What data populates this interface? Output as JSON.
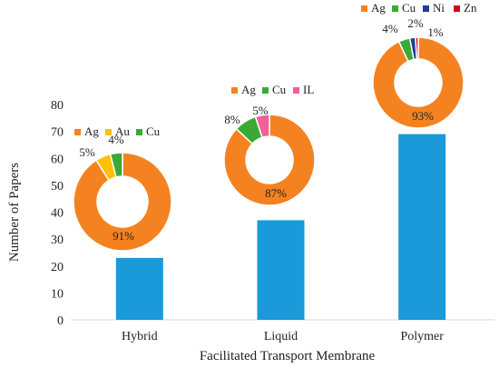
{
  "chart_data": {
    "type": "bar",
    "categories": [
      "Hybrid",
      "Liquid",
      "Polymer"
    ],
    "values": [
      23,
      37,
      69
    ],
    "xlabel": "Facilitated Transport Membrane",
    "ylabel": "Number of Papers",
    "ylim": [
      0,
      80
    ],
    "yticks": [
      "0",
      "10",
      "20",
      "30",
      "40",
      "50",
      "60",
      "70",
      "80"
    ],
    "grid": false,
    "bar_color": "#1a9ad9",
    "insets": [
      {
        "type": "pie",
        "category": "Hybrid",
        "legend_placement": "top",
        "slices": [
          {
            "name": "Ag",
            "value": 91,
            "label": "91%",
            "color": "#f58220"
          },
          {
            "name": "Au",
            "value": 5,
            "label": "5%",
            "color": "#ffc000"
          },
          {
            "name": "Cu",
            "value": 4,
            "label": "4%",
            "color": "#3aa935"
          }
        ]
      },
      {
        "type": "pie",
        "category": "Liquid",
        "legend_placement": "top",
        "slices": [
          {
            "name": "Ag",
            "value": 87,
            "label": "87%",
            "color": "#f58220"
          },
          {
            "name": "Cu",
            "value": 8,
            "label": "8%",
            "color": "#3aa935"
          },
          {
            "name": "IL",
            "value": 5,
            "label": "5%",
            "color": "#f25f99"
          }
        ]
      },
      {
        "type": "pie",
        "category": "Polymer",
        "legend_placement": "top",
        "slices": [
          {
            "name": "Ag",
            "value": 93,
            "label": "93%",
            "color": "#f58220"
          },
          {
            "name": "Cu",
            "value": 4,
            "label": "4%",
            "color": "#3aa935"
          },
          {
            "name": "Ni",
            "value": 2,
            "label": "2%",
            "color": "#1f3d99"
          },
          {
            "name": "Zn",
            "value": 1,
            "label": "1%",
            "color": "#d9001b"
          }
        ]
      }
    ]
  }
}
